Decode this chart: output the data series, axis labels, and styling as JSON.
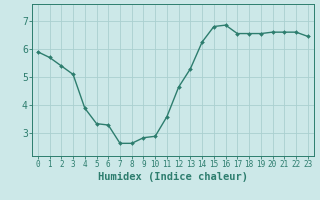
{
  "x": [
    0,
    1,
    2,
    3,
    4,
    5,
    6,
    7,
    8,
    9,
    10,
    11,
    12,
    13,
    14,
    15,
    16,
    17,
    18,
    19,
    20,
    21,
    22,
    23
  ],
  "y": [
    5.9,
    5.7,
    5.4,
    5.1,
    3.9,
    3.35,
    3.3,
    2.65,
    2.65,
    2.85,
    2.9,
    3.6,
    4.65,
    5.3,
    6.25,
    6.8,
    6.85,
    6.55,
    6.55,
    6.55,
    6.6,
    6.6,
    6.6,
    6.45
  ],
  "line_color": "#2d7d6e",
  "marker": "D",
  "marker_size": 2.0,
  "line_width": 1.0,
  "background_color": "#cce8e8",
  "grid_color": "#aad0d0",
  "xlabel": "Humidex (Indice chaleur)",
  "ylim": [
    2.2,
    7.6
  ],
  "xlim": [
    -0.5,
    23.5
  ],
  "yticks": [
    3,
    4,
    5,
    6,
    7
  ],
  "xticks": [
    0,
    1,
    2,
    3,
    4,
    5,
    6,
    7,
    8,
    9,
    10,
    11,
    12,
    13,
    14,
    15,
    16,
    17,
    18,
    19,
    20,
    21,
    22,
    23
  ],
  "tick_color": "#2d7d6e",
  "axis_color": "#2d7d6e",
  "xlabel_fontsize": 7.5,
  "xtick_fontsize": 5.5,
  "ytick_fontsize": 7
}
